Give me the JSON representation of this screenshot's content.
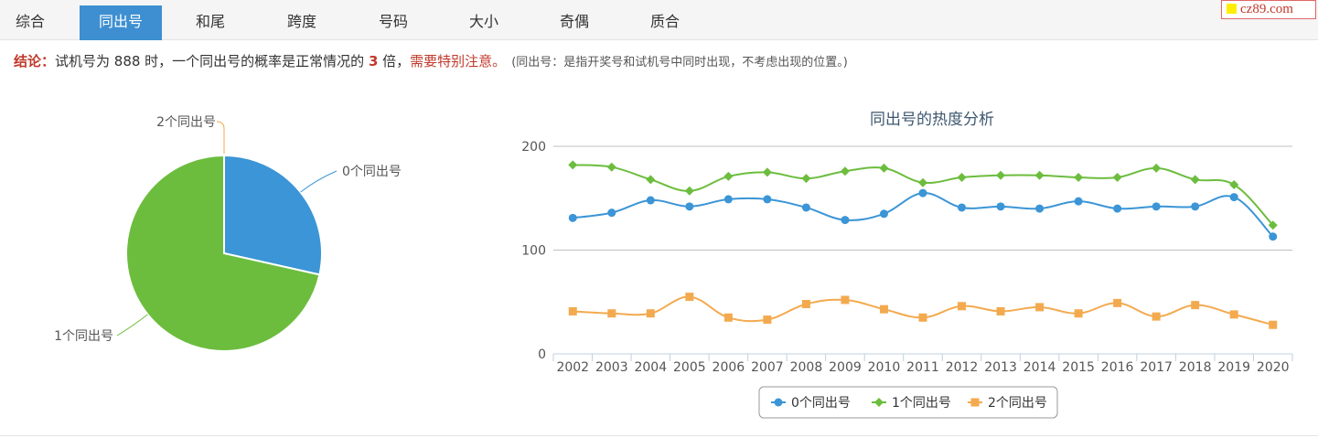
{
  "tabs": [
    {
      "label": "综合",
      "active": false
    },
    {
      "label": "同出号",
      "active": true
    },
    {
      "label": "和尾",
      "active": false
    },
    {
      "label": "跨度",
      "active": false
    },
    {
      "label": "号码",
      "active": false
    },
    {
      "label": "大小",
      "active": false
    },
    {
      "label": "奇偶",
      "active": false
    },
    {
      "label": "质合",
      "active": false
    }
  ],
  "brand": "cz89.com",
  "conclusion": {
    "label": "结论：",
    "text1": "试机号为 888 时，一个同出号的概率是正常情况的 ",
    "times": "3",
    "text2": " 倍，",
    "warn": "需要特别注意。",
    "note": "(同出号：是指开奖号和试机号中同时出现，不考虑出现的位置。)"
  },
  "colors": {
    "s0": "#3b95d6",
    "s1": "#6cbd3e",
    "s2": "#f3aa4f",
    "accent": "#3d8fd1",
    "warn": "#c0392b"
  },
  "chart_data": [
    {
      "type": "pie",
      "labels": [
        "0个同出号",
        "1个同出号",
        "2个同出号"
      ],
      "values": [
        28.5,
        71.5,
        0.0
      ]
    },
    {
      "type": "line",
      "title": "同出号的热度分析",
      "categories": [
        "2002",
        "2003",
        "2004",
        "2005",
        "2006",
        "2007",
        "2008",
        "2009",
        "2010",
        "2011",
        "2012",
        "2013",
        "2014",
        "2015",
        "2016",
        "2017",
        "2018",
        "2019",
        "2020"
      ],
      "series": [
        {
          "name": "0个同出号",
          "values": [
            131,
            136,
            148,
            142,
            149,
            149,
            141,
            129,
            135,
            155,
            141,
            142,
            140,
            147,
            140,
            142,
            142,
            151,
            113
          ]
        },
        {
          "name": "1个同出号",
          "values": [
            182,
            180,
            168,
            157,
            171,
            175,
            169,
            176,
            179,
            165,
            170,
            172,
            172,
            170,
            170,
            179,
            168,
            163,
            124
          ]
        },
        {
          "name": "2个同出号",
          "values": [
            41,
            39,
            39,
            55,
            35,
            33,
            48,
            52,
            43,
            35,
            46,
            41,
            45,
            39,
            49,
            36,
            47,
            38,
            28
          ]
        }
      ],
      "yticks": [
        0,
        100,
        200
      ],
      "ylim": [
        0,
        200
      ],
      "legend": "bottom"
    }
  ]
}
